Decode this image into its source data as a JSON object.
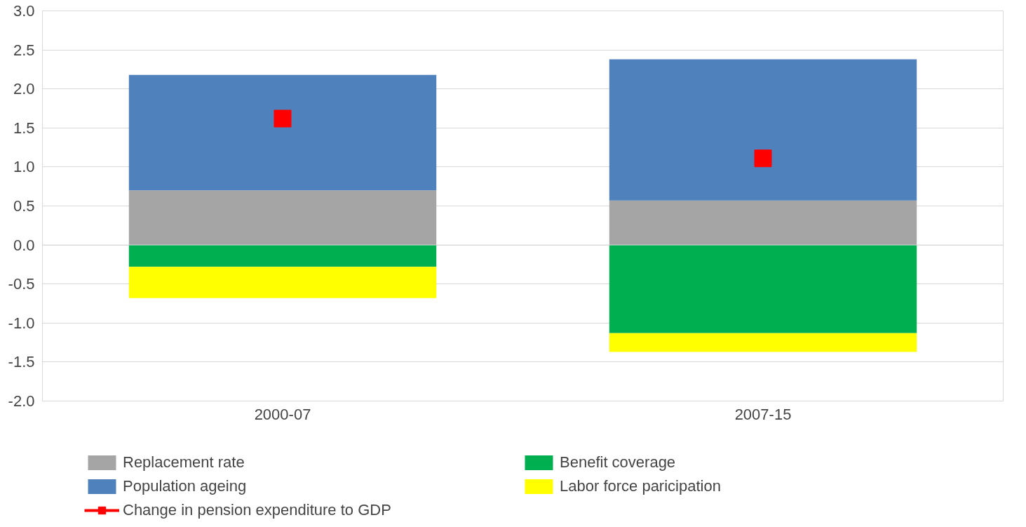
{
  "chart_data": {
    "type": "bar",
    "stacked": true,
    "categories": [
      "2000-07",
      "2007-15"
    ],
    "series": [
      {
        "name": "Replacement rate",
        "color": "#a5a5a5",
        "values": [
          0.7,
          0.57
        ]
      },
      {
        "name": "Benefit coverage",
        "color": "#00b050",
        "values": [
          -0.28,
          -1.13
        ]
      },
      {
        "name": "Population ageing",
        "color": "#4f81bd",
        "values": [
          1.48,
          1.81
        ]
      },
      {
        "name": "Labor force paricipation",
        "color": "#ffff00",
        "values": [
          -0.4,
          -0.24
        ]
      },
      {
        "name": "Change in pension expenditure to GDP",
        "color": "#ff0000",
        "type": "scatter",
        "marker": "square",
        "values": [
          1.62,
          1.11
        ]
      }
    ],
    "ylim": [
      -2.0,
      3.0
    ],
    "yticks": [
      {
        "value": -2,
        "label": "-2.0"
      },
      {
        "value": -1.5,
        "label": "-1.5"
      },
      {
        "value": -1,
        "label": "-1.0"
      },
      {
        "value": -0.5,
        "label": "-0.5"
      },
      {
        "value": 0,
        "label": "0.0"
      },
      {
        "value": 0.5,
        "label": "0.5"
      },
      {
        "value": 1,
        "label": "1.0"
      },
      {
        "value": 1.5,
        "label": "1.5"
      },
      {
        "value": 2,
        "label": "2.0"
      },
      {
        "value": 2.5,
        "label": "2.5"
      },
      {
        "value": 3,
        "label": "3.0"
      }
    ],
    "grid": "y",
    "legend": "bottom"
  }
}
